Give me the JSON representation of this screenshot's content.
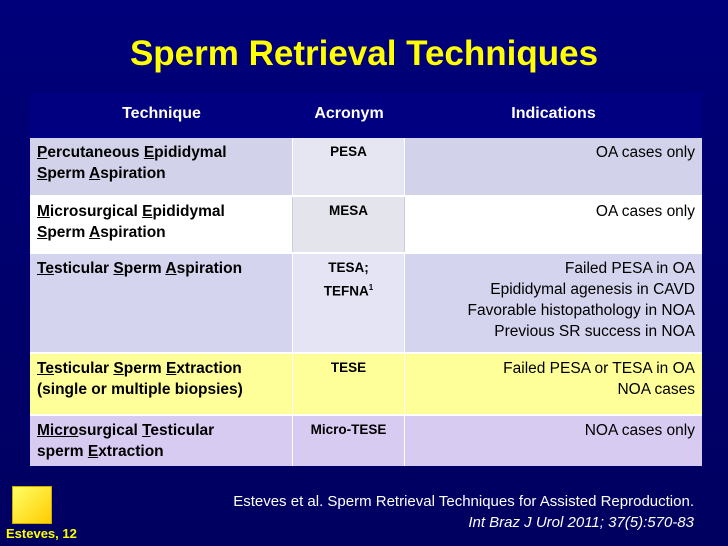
{
  "title": "Sperm Retrieval Techniques",
  "table": {
    "headers": [
      "Technique",
      "Acronym",
      "Indications"
    ],
    "rows": [
      {
        "technique": [
          [
            {
              "text": "P",
              "underline": true
            },
            {
              "text": "ercutaneous "
            },
            {
              "text": "E",
              "underline": true
            },
            {
              "text": "pididymal"
            }
          ],
          [
            {
              "text": "S",
              "underline": true
            },
            {
              "text": "perm "
            },
            {
              "text": "A",
              "underline": true
            },
            {
              "text": "spiration"
            }
          ]
        ],
        "acronym": [
          [
            {
              "text": "PESA"
            }
          ]
        ],
        "indications": [
          "OA cases only"
        ]
      },
      {
        "technique": [
          [
            {
              "text": "M",
              "underline": true
            },
            {
              "text": "icrosurgical "
            },
            {
              "text": "E",
              "underline": true
            },
            {
              "text": "pididymal"
            }
          ],
          [
            {
              "text": "S",
              "underline": true
            },
            {
              "text": "perm "
            },
            {
              "text": "A",
              "underline": true
            },
            {
              "text": "spiration"
            }
          ]
        ],
        "acronym": [
          [
            {
              "text": "MESA"
            }
          ]
        ],
        "indications": [
          "OA cases only"
        ]
      },
      {
        "technique": [
          [
            {
              "text": "Te",
              "underline": true
            },
            {
              "text": "sticular "
            },
            {
              "text": "S",
              "underline": true
            },
            {
              "text": "perm "
            },
            {
              "text": "A",
              "underline": true
            },
            {
              "text": "spiration"
            }
          ]
        ],
        "acronym": [
          [
            {
              "text": "TESA;"
            }
          ],
          [
            {
              "text": "TEFNA"
            },
            {
              "text": "1",
              "superscript": true
            }
          ]
        ],
        "indications": [
          "Failed PESA in OA",
          "Epididymal agenesis in CAVD",
          "Favorable histopathology in NOA",
          "Previous SR success in NOA"
        ]
      },
      {
        "technique": [
          [
            {
              "text": "Te",
              "underline": true
            },
            {
              "text": "sticular "
            },
            {
              "text": "S",
              "underline": true
            },
            {
              "text": "perm "
            },
            {
              "text": "E",
              "underline": true
            },
            {
              "text": "xtraction"
            }
          ],
          [
            {
              "text": "(single or multiple biopsies)"
            }
          ]
        ],
        "acronym": [
          [
            {
              "text": "TESE"
            }
          ]
        ],
        "indications": [
          "Failed PESA or TESA in OA",
          "NOA cases"
        ]
      },
      {
        "technique": [
          [
            {
              "text": "Micro",
              "underline": true
            },
            {
              "text": "surgical "
            },
            {
              "text": "T",
              "underline": true
            },
            {
              "text": "esticular"
            }
          ],
          [
            {
              "text": "sperm "
            },
            {
              "text": "E",
              "underline": true
            },
            {
              "text": "xtraction"
            }
          ]
        ],
        "acronym": [
          [
            {
              "text": "Micro-TESE"
            }
          ]
        ],
        "indications": [
          "NOA cases only"
        ]
      }
    ]
  },
  "footer": {
    "author": "Esteves, 12",
    "citation": "Esteves et al. Sperm Retrieval Techniques for Assisted Reproduction.",
    "journal": "Int Braz J Urol 2011; 37(5):570-83"
  }
}
